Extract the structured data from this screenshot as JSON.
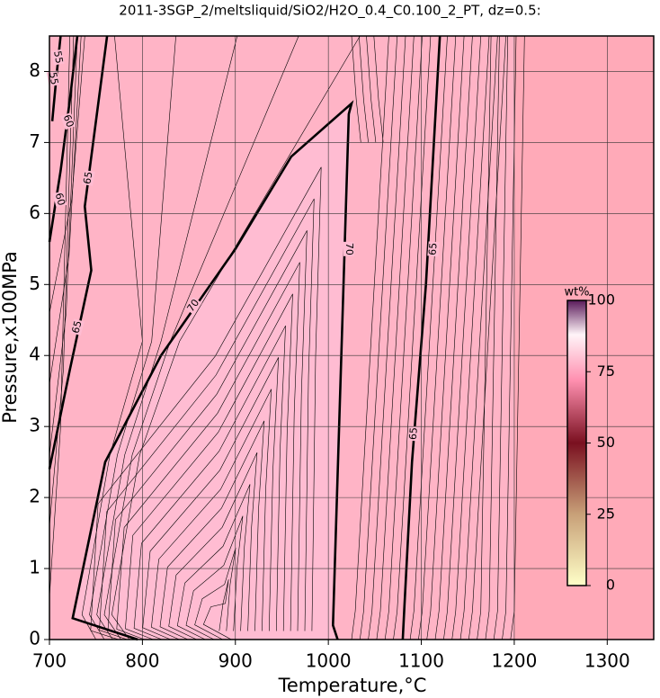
{
  "chart_data": {
    "type": "contour",
    "title": "2011-3SGP_2/meltsliquid/SiO2/H2O_0.4_C0.100_2_PT, dz=0.5:",
    "x_label": "Temperature,°C",
    "y_label": "Pressure,x100MPa",
    "xlim": [
      700,
      1350
    ],
    "ylim": [
      0,
      8.5
    ],
    "xticks": [
      700,
      800,
      900,
      1000,
      1100,
      1200,
      1300
    ],
    "yticks": [
      0,
      1,
      2,
      3,
      4,
      5,
      6,
      7,
      8
    ],
    "grid": true,
    "contour_levels": [
      55,
      60,
      65,
      65,
      70
    ],
    "contour_labels": [
      55,
      55,
      60,
      60,
      65,
      65,
      65,
      65,
      70,
      70
    ],
    "colorbar": {
      "label": "wt%",
      "lim": [
        0,
        100
      ],
      "ticks": [
        0,
        25,
        50,
        75,
        100
      ]
    }
  }
}
